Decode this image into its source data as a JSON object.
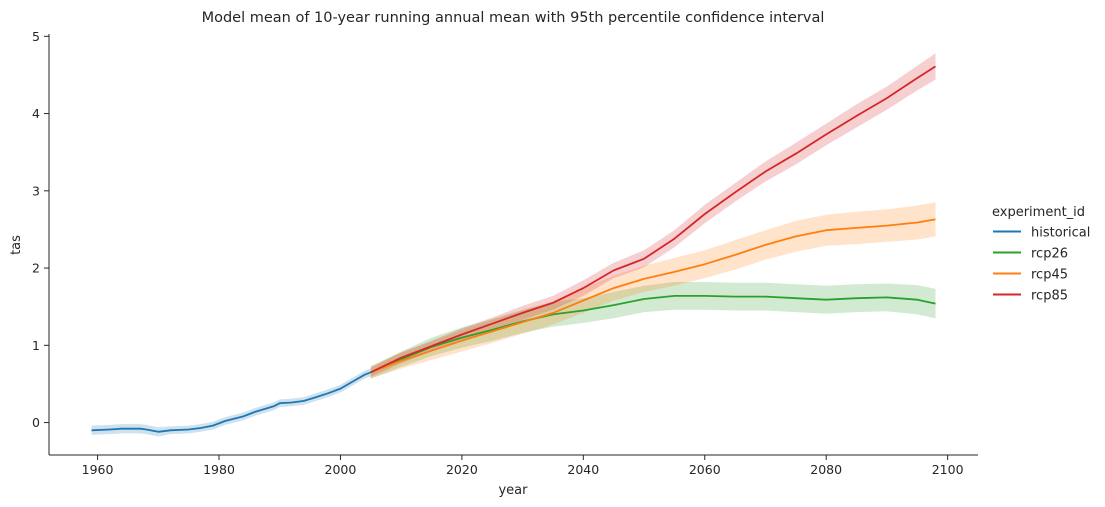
{
  "chart_data": {
    "type": "line",
    "title": "Model mean of 10-year running annual mean with 95th percentile confidence interval",
    "xlabel": "year",
    "ylabel": "tas",
    "xlim": [
      1952,
      2105
    ],
    "ylim": [
      -0.42,
      5.03
    ],
    "x_ticks": [
      1960,
      1980,
      2000,
      2020,
      2040,
      2060,
      2080,
      2100
    ],
    "y_ticks": [
      0,
      1,
      2,
      3,
      4,
      5
    ],
    "grid": false,
    "legend": {
      "title": "experiment_id",
      "placement": "right",
      "entries": [
        "historical",
        "rcp26",
        "rcp45",
        "rcp85"
      ]
    },
    "series": [
      {
        "name": "historical",
        "color": "#1f77b4",
        "x": [
          1959,
          1962,
          1964,
          1967,
          1968,
          1970,
          1972,
          1975,
          1977,
          1979,
          1981,
          1984,
          1986,
          1989,
          1990,
          1992,
          1994,
          1996,
          1998,
          2000,
          2002,
          2004,
          2005
        ],
        "y": [
          -0.1,
          -0.09,
          -0.08,
          -0.08,
          -0.09,
          -0.12,
          -0.1,
          -0.09,
          -0.07,
          -0.04,
          0.02,
          0.08,
          0.14,
          0.21,
          0.25,
          0.26,
          0.28,
          0.33,
          0.38,
          0.44,
          0.53,
          0.62,
          0.65
        ],
        "ci": [
          0.06,
          0.06,
          0.06,
          0.06,
          0.06,
          0.06,
          0.05,
          0.05,
          0.05,
          0.05,
          0.05,
          0.05,
          0.05,
          0.05,
          0.05,
          0.05,
          0.05,
          0.05,
          0.05,
          0.05,
          0.05,
          0.05,
          0.05
        ]
      },
      {
        "name": "rcp26",
        "color": "#2ca02c",
        "x": [
          2005,
          2010,
          2015,
          2020,
          2025,
          2030,
          2035,
          2040,
          2045,
          2050,
          2055,
          2060,
          2065,
          2070,
          2075,
          2080,
          2085,
          2090,
          2095,
          2098
        ],
        "y": [
          0.65,
          0.82,
          0.98,
          1.1,
          1.2,
          1.31,
          1.4,
          1.45,
          1.52,
          1.6,
          1.64,
          1.64,
          1.63,
          1.63,
          1.61,
          1.59,
          1.61,
          1.62,
          1.59,
          1.54
        ],
        "ci": [
          0.08,
          0.1,
          0.12,
          0.13,
          0.14,
          0.15,
          0.16,
          0.16,
          0.17,
          0.17,
          0.18,
          0.18,
          0.18,
          0.18,
          0.18,
          0.18,
          0.18,
          0.18,
          0.19,
          0.19
        ]
      },
      {
        "name": "rcp45",
        "color": "#ff7f0e",
        "x": [
          2005,
          2010,
          2015,
          2020,
          2025,
          2030,
          2035,
          2040,
          2045,
          2050,
          2055,
          2060,
          2065,
          2070,
          2075,
          2080,
          2085,
          2090,
          2095,
          2098
        ],
        "y": [
          0.65,
          0.8,
          0.93,
          1.06,
          1.18,
          1.3,
          1.42,
          1.58,
          1.74,
          1.86,
          1.95,
          2.05,
          2.17,
          2.3,
          2.41,
          2.49,
          2.52,
          2.55,
          2.59,
          2.63
        ],
        "ci": [
          0.08,
          0.1,
          0.12,
          0.14,
          0.15,
          0.15,
          0.15,
          0.16,
          0.16,
          0.17,
          0.18,
          0.18,
          0.19,
          0.19,
          0.2,
          0.2,
          0.21,
          0.21,
          0.22,
          0.22
        ]
      },
      {
        "name": "rcp85",
        "color": "#d62728",
        "x": [
          2005,
          2010,
          2015,
          2020,
          2025,
          2030,
          2035,
          2040,
          2045,
          2050,
          2055,
          2060,
          2065,
          2070,
          2075,
          2080,
          2085,
          2090,
          2095,
          2098
        ],
        "y": [
          0.65,
          0.84,
          0.99,
          1.14,
          1.28,
          1.42,
          1.55,
          1.74,
          1.97,
          2.12,
          2.38,
          2.7,
          2.98,
          3.25,
          3.48,
          3.73,
          3.97,
          4.2,
          4.46,
          4.61
        ],
        "ci": [
          0.06,
          0.07,
          0.07,
          0.08,
          0.08,
          0.09,
          0.09,
          0.1,
          0.1,
          0.11,
          0.11,
          0.12,
          0.12,
          0.13,
          0.14,
          0.14,
          0.15,
          0.15,
          0.16,
          0.17
        ]
      }
    ]
  }
}
